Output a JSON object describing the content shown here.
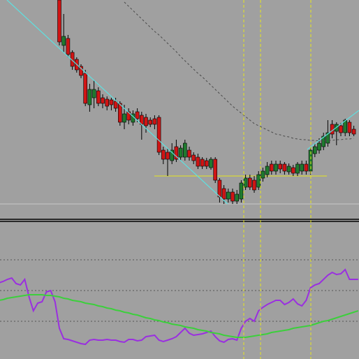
{
  "chart_data": [
    {
      "type": "candlestick",
      "categories": [
        null,
        null,
        null,
        null,
        null,
        null,
        null,
        null,
        null,
        null,
        null,
        null,
        null,
        null,
        null,
        null,
        null,
        null,
        null,
        null,
        null,
        null,
        null,
        null,
        null,
        null,
        null,
        null,
        null,
        null,
        null,
        null,
        null,
        null,
        null,
        null,
        null,
        null,
        null,
        null,
        null,
        null,
        null,
        null,
        null,
        null,
        null,
        null,
        null,
        null,
        null,
        null,
        null,
        null,
        null,
        null,
        null,
        null,
        null,
        null,
        null,
        null,
        null,
        null,
        null,
        null,
        null,
        null,
        null
      ],
      "ohlc": [
        [
          315,
          315,
          250,
          255
        ],
        [
          250,
          295,
          240,
          263
        ],
        [
          260,
          265,
          233,
          237
        ],
        [
          240,
          243,
          215,
          220
        ],
        [
          230,
          233,
          211,
          215
        ],
        [
          220,
          223,
          203,
          207
        ],
        [
          210,
          215,
          163,
          167
        ],
        [
          165,
          195,
          155,
          187
        ],
        [
          175,
          200,
          160,
          187
        ],
        [
          185,
          190,
          163,
          167
        ],
        [
          175,
          180,
          160,
          167
        ],
        [
          173,
          177,
          157,
          163
        ],
        [
          172,
          175,
          157,
          165
        ],
        [
          170,
          175,
          155,
          160
        ],
        [
          167,
          170,
          135,
          140
        ],
        [
          140,
          165,
          130,
          152
        ],
        [
          155,
          160,
          137,
          143
        ],
        [
          140,
          157,
          135,
          152
        ],
        [
          155,
          160,
          140,
          145
        ],
        [
          150,
          155,
          115,
          137
        ],
        [
          147,
          152,
          125,
          135
        ],
        [
          143,
          147,
          133,
          137
        ],
        [
          145,
          150,
          130,
          137
        ],
        [
          147,
          150,
          93,
          97
        ],
        [
          100,
          105,
          80,
          87
        ],
        [
          97,
          103,
          63,
          87
        ],
        [
          85,
          110,
          80,
          100
        ],
        [
          105,
          115,
          83,
          87
        ],
        [
          90,
          107,
          85,
          103
        ],
        [
          90,
          115,
          85,
          110
        ],
        [
          100,
          105,
          85,
          90
        ],
        [
          93,
          97,
          80,
          85
        ],
        [
          90,
          95,
          73,
          77
        ],
        [
          87,
          90,
          73,
          77
        ],
        [
          85,
          89,
          73,
          77
        ],
        [
          75,
          90,
          72,
          87
        ],
        [
          87,
          90,
          53,
          57
        ],
        [
          57,
          60,
          25,
          33
        ],
        [
          45,
          50,
          23,
          30
        ],
        [
          30,
          45,
          25,
          40
        ],
        [
          40,
          45,
          23,
          27
        ],
        [
          27,
          43,
          23,
          37
        ],
        [
          30,
          57,
          25,
          53
        ],
        [
          47,
          65,
          43,
          60
        ],
        [
          60,
          65,
          43,
          47
        ],
        [
          57,
          63,
          39,
          43
        ],
        [
          47,
          70,
          43,
          65
        ],
        [
          60,
          75,
          55,
          70
        ],
        [
          65,
          83,
          61,
          77
        ],
        [
          80,
          85,
          65,
          70
        ],
        [
          70,
          85,
          65,
          80
        ],
        [
          80,
          85,
          67,
          73
        ],
        [
          80,
          83,
          65,
          70
        ],
        [
          69,
          81,
          65,
          77
        ],
        [
          75,
          79,
          63,
          67
        ],
        [
          67,
          83,
          63,
          80
        ],
        [
          70,
          85,
          65,
          80
        ],
        [
          80,
          85,
          65,
          70
        ],
        [
          70,
          105,
          65,
          100
        ],
        [
          95,
          110,
          90,
          105
        ],
        [
          100,
          117,
          95,
          110
        ],
        [
          105,
          125,
          100,
          120
        ],
        [
          110,
          143,
          105,
          125
        ],
        [
          137,
          143,
          117,
          123
        ],
        [
          127,
          140,
          107,
          137
        ],
        [
          135,
          139,
          120,
          125
        ],
        [
          125,
          145,
          120,
          143
        ],
        [
          140,
          143,
          120,
          125
        ],
        [
          130,
          135,
          120,
          123
        ]
      ],
      "up_color": "#1f7a2e",
      "down_color": "#d01414",
      "series": [
        {
          "color": "#4a4a4a",
          "values": [
            null,
            null,
            null,
            null,
            null,
            null,
            null,
            null,
            null,
            null,
            null,
            null,
            null,
            null,
            null,
            312,
            306,
            300,
            294,
            288,
            282,
            276,
            270,
            265,
            259,
            253,
            247,
            241,
            234,
            228,
            222,
            216,
            210,
            205,
            199,
            193,
            187,
            181,
            175,
            169,
            163,
            158,
            153,
            148,
            143,
            138,
            135,
            132,
            129,
            126,
            123,
            122,
            120,
            119,
            117,
            116,
            115,
            115,
            114,
            114,
            113,
            113,
            114,
            114,
            115,
            115,
            116,
            116,
            117
          ]
        }
      ],
      "levels": [
        23,
        63
      ],
      "level_colors": [
        "#c8c8c8",
        "#e6e61e"
      ],
      "ylim": [
        0,
        315
      ]
    },
    {
      "type": "line",
      "categories": [
        null,
        null,
        null,
        null,
        null,
        null,
        null,
        null,
        null,
        null,
        null,
        null,
        null,
        null,
        null,
        null,
        null,
        null,
        null,
        null,
        null,
        null,
        null,
        null,
        null,
        null,
        null,
        null,
        null,
        null,
        null,
        null,
        null,
        null,
        null,
        null,
        null,
        null,
        null,
        null,
        null,
        null,
        null,
        null,
        null,
        null,
        null,
        null,
        null,
        null,
        null,
        null,
        null,
        null,
        null,
        null,
        null,
        null,
        null,
        null,
        null,
        null,
        null,
        null,
        null,
        null,
        null,
        null,
        null,
        null,
        null,
        null,
        null,
        null,
        null,
        null,
        null,
        null,
        null,
        null,
        null,
        null,
        null,
        null
      ],
      "series": [
        {
          "color": "#9a2fe0",
          "values": [
            109,
            111,
            114,
            116,
            108,
            106,
            114,
            89,
            69,
            80,
            82,
            96,
            98,
            82,
            44,
            29,
            28,
            26,
            24,
            22,
            21,
            27,
            28,
            27,
            27,
            28,
            27,
            27,
            25,
            24,
            28,
            28,
            26,
            27,
            32,
            33,
            34,
            27,
            25,
            27,
            29,
            32,
            38,
            44,
            37,
            34,
            35,
            36,
            38,
            40,
            32,
            26,
            24,
            28,
            29,
            27,
            44,
            54,
            58,
            54,
            69,
            74,
            78,
            81,
            84,
            84,
            78,
            81,
            86,
            79,
            76,
            84,
            102,
            106,
            108,
            114,
            120,
            124,
            121,
            122,
            128,
            114,
            114,
            114
          ]
        },
        {
          "color": "#3ccf3c",
          "values": [
            84,
            85,
            87,
            88,
            89,
            90,
            91,
            92,
            92,
            92,
            92,
            91,
            91,
            90,
            89,
            87,
            86,
            84,
            83,
            82,
            80,
            79,
            78,
            76,
            75,
            73,
            72,
            70,
            69,
            67,
            66,
            64,
            63,
            61,
            59,
            58,
            56,
            55,
            53,
            52,
            50,
            49,
            48,
            46,
            45,
            44,
            42,
            41,
            40,
            38,
            37,
            36,
            34,
            33,
            32,
            31,
            31,
            31,
            32,
            33,
            34,
            35,
            36,
            38,
            39,
            40,
            41,
            42,
            44,
            45,
            46,
            47,
            48,
            50,
            52,
            54,
            55,
            57,
            59,
            61,
            63,
            65,
            67,
            69
          ]
        }
      ],
      "levels": [
        142,
        98,
        54
      ],
      "level_colors": [
        "#555555",
        "#555555",
        "#555555"
      ],
      "ylim": [
        0,
        195
      ]
    }
  ]
}
